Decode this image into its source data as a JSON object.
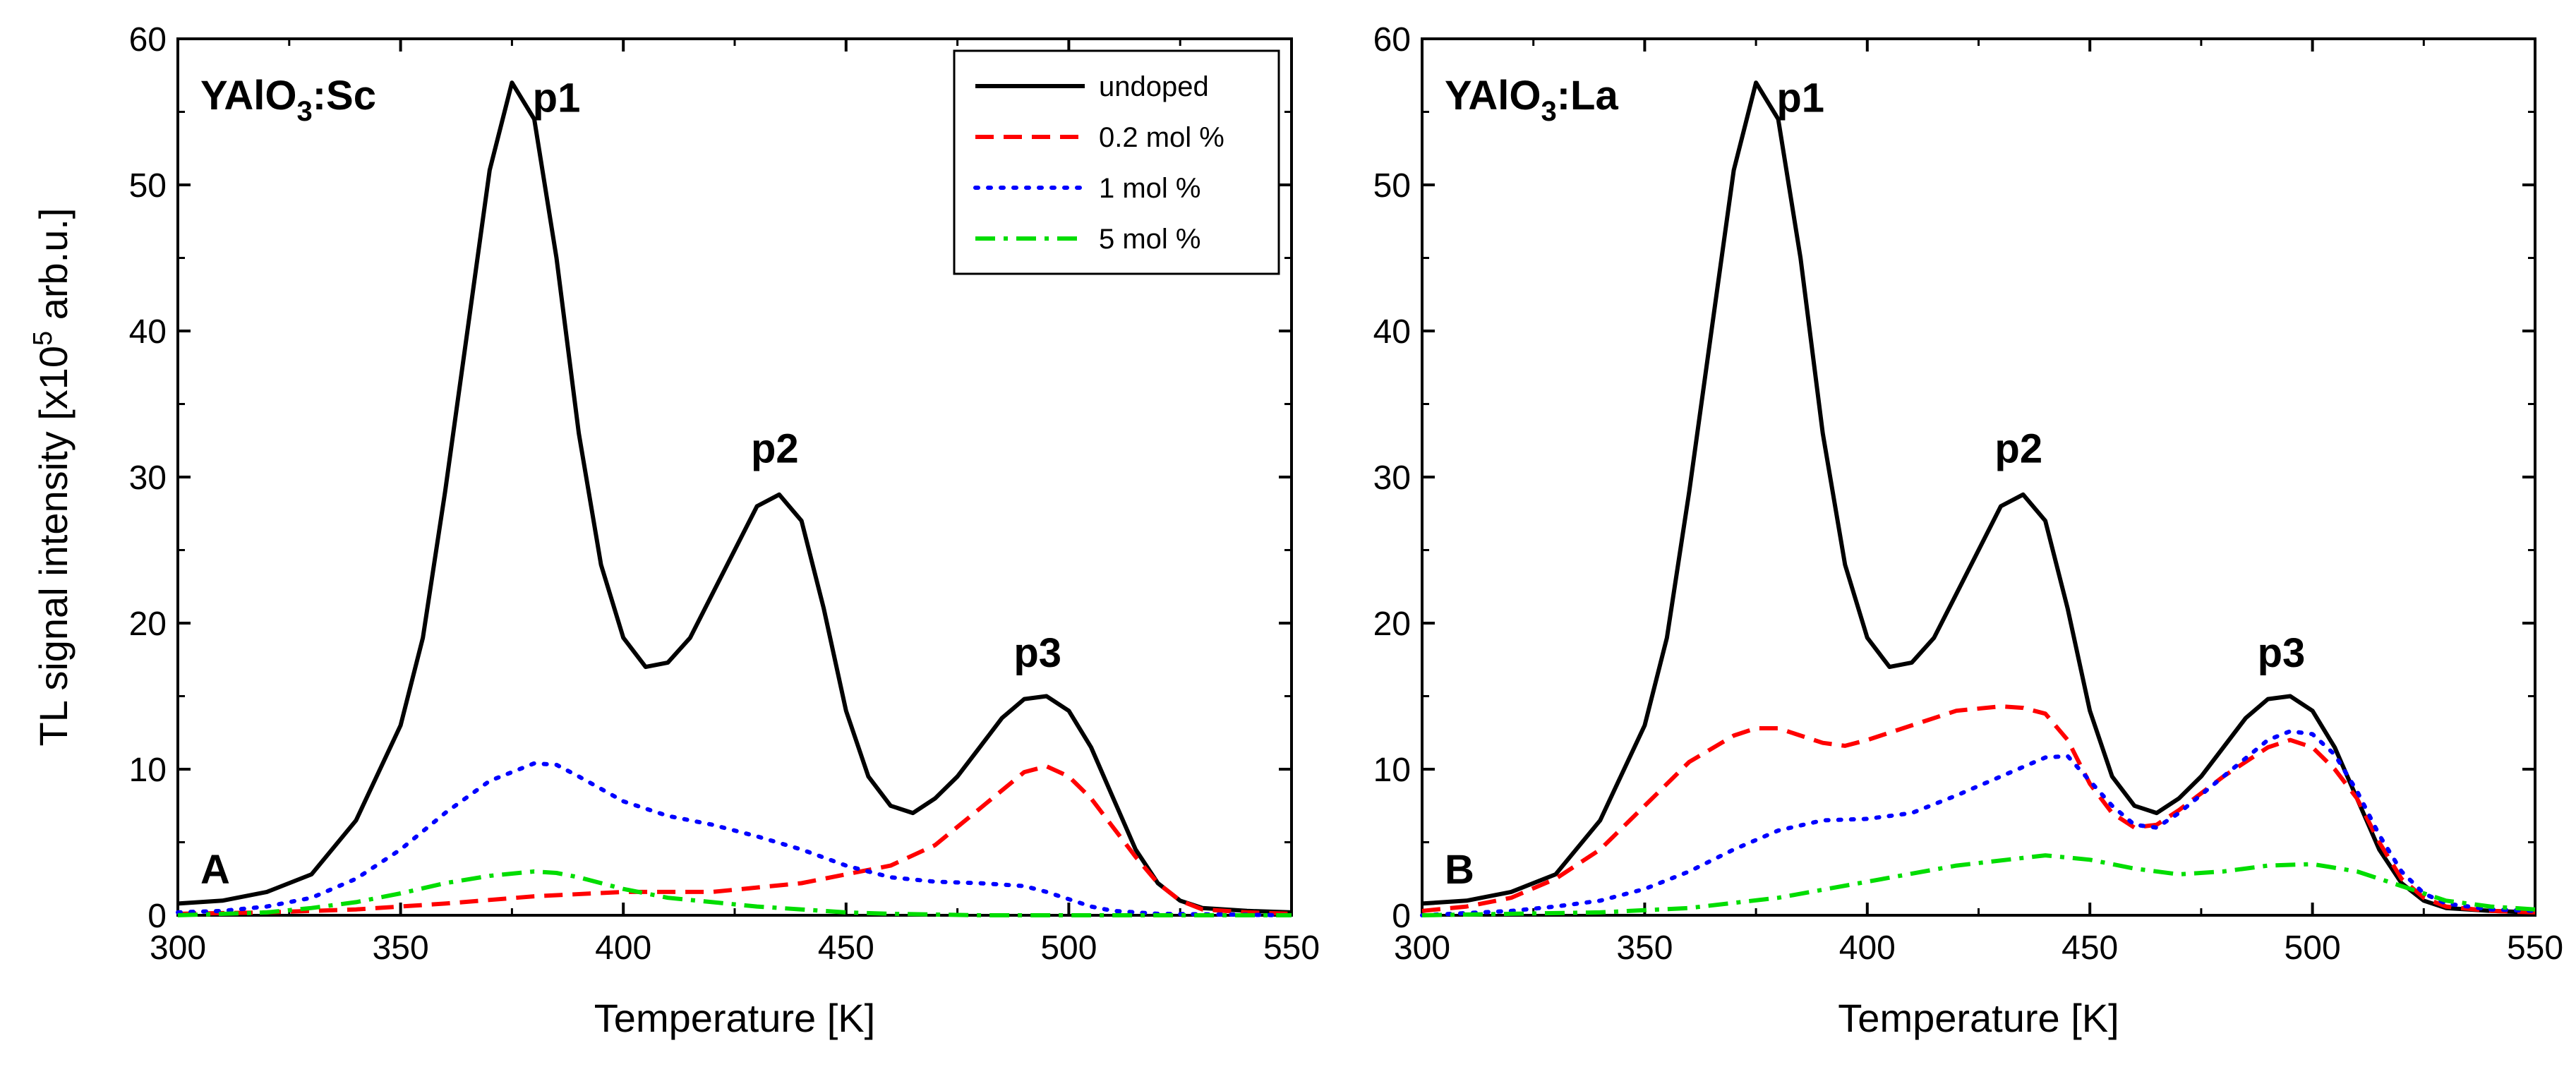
{
  "colors": {
    "undoped": "#000000",
    "mol_0_2": "#ff0000",
    "mol_1": "#0000ff",
    "mol_5": "#00dd00"
  },
  "chart_data": [
    {
      "type": "line",
      "panel_letter": "A",
      "title": {
        "base": "YAlO",
        "subscript": "3",
        "suffix": ":Sc"
      },
      "xlabel": "Temperature [K]",
      "ylabel": {
        "prefix": "TL signal intensity [x10",
        "superscript": "5",
        "suffix": " arb.u.]"
      },
      "xlim": [
        300,
        550
      ],
      "ylim": [
        0,
        60
      ],
      "x_ticks": [
        "300",
        "350",
        "400",
        "450",
        "500",
        "550"
      ],
      "y_ticks": [
        "0",
        "10",
        "20",
        "30",
        "40",
        "50",
        "60"
      ],
      "legend_position": "top-right",
      "peak_labels": [
        {
          "text": "p1",
          "x": 385,
          "y": 55
        },
        {
          "text": "p2",
          "x": 434,
          "y": 31
        },
        {
          "text": "p3",
          "x": 493,
          "y": 17
        }
      ],
      "series": [
        {
          "name": "undoped",
          "style": "solid",
          "points": [
            [
              300,
              0.8
            ],
            [
              310,
              1.0
            ],
            [
              320,
              1.6
            ],
            [
              330,
              2.8
            ],
            [
              340,
              6.5
            ],
            [
              350,
              13
            ],
            [
              355,
              19
            ],
            [
              360,
              29
            ],
            [
              365,
              40
            ],
            [
              370,
              51
            ],
            [
              375,
              57
            ],
            [
              380,
              54.5
            ],
            [
              385,
              45
            ],
            [
              390,
              33
            ],
            [
              395,
              24
            ],
            [
              400,
              19
            ],
            [
              405,
              17
            ],
            [
              410,
              17.3
            ],
            [
              415,
              19
            ],
            [
              420,
              22
            ],
            [
              425,
              25
            ],
            [
              430,
              28
            ],
            [
              435,
              28.8
            ],
            [
              440,
              27
            ],
            [
              445,
              21
            ],
            [
              450,
              14
            ],
            [
              455,
              9.5
            ],
            [
              460,
              7.5
            ],
            [
              465,
              7
            ],
            [
              470,
              8
            ],
            [
              475,
              9.5
            ],
            [
              480,
              11.5
            ],
            [
              485,
              13.5
            ],
            [
              490,
              14.8
            ],
            [
              495,
              15
            ],
            [
              500,
              14
            ],
            [
              505,
              11.5
            ],
            [
              510,
              8
            ],
            [
              515,
              4.5
            ],
            [
              520,
              2.2
            ],
            [
              525,
              1
            ],
            [
              530,
              0.5
            ],
            [
              540,
              0.3
            ],
            [
              550,
              0.2
            ]
          ]
        },
        {
          "name": "0.2 mol %",
          "style": "dashed",
          "points": [
            [
              300,
              0.1
            ],
            [
              320,
              0.2
            ],
            [
              340,
              0.4
            ],
            [
              360,
              0.8
            ],
            [
              380,
              1.3
            ],
            [
              400,
              1.6
            ],
            [
              420,
              1.6
            ],
            [
              440,
              2.2
            ],
            [
              450,
              2.8
            ],
            [
              460,
              3.4
            ],
            [
              470,
              4.8
            ],
            [
              480,
              7.3
            ],
            [
              490,
              9.8
            ],
            [
              495,
              10.2
            ],
            [
              500,
              9.5
            ],
            [
              505,
              8
            ],
            [
              510,
              6
            ],
            [
              515,
              4
            ],
            [
              520,
              2.2
            ],
            [
              525,
              1
            ],
            [
              530,
              0.4
            ],
            [
              540,
              0.2
            ],
            [
              550,
              0.1
            ]
          ]
        },
        {
          "name": "1 mol %",
          "style": "dotted",
          "points": [
            [
              300,
              0.2
            ],
            [
              310,
              0.3
            ],
            [
              320,
              0.6
            ],
            [
              330,
              1.2
            ],
            [
              340,
              2.5
            ],
            [
              350,
              4.5
            ],
            [
              360,
              7
            ],
            [
              370,
              9.2
            ],
            [
              380,
              10.4
            ],
            [
              385,
              10.3
            ],
            [
              390,
              9.5
            ],
            [
              400,
              7.8
            ],
            [
              410,
              6.8
            ],
            [
              420,
              6.2
            ],
            [
              430,
              5.4
            ],
            [
              440,
              4.5
            ],
            [
              450,
              3.4
            ],
            [
              460,
              2.6
            ],
            [
              470,
              2.3
            ],
            [
              480,
              2.2
            ],
            [
              490,
              2
            ],
            [
              495,
              1.6
            ],
            [
              500,
              1.1
            ],
            [
              505,
              0.6
            ],
            [
              510,
              0.3
            ],
            [
              520,
              0.1
            ],
            [
              550,
              0
            ]
          ]
        },
        {
          "name": "5 mol %",
          "style": "dashdot",
          "points": [
            [
              300,
              0
            ],
            [
              320,
              0.2
            ],
            [
              330,
              0.5
            ],
            [
              340,
              0.9
            ],
            [
              350,
              1.5
            ],
            [
              360,
              2.2
            ],
            [
              370,
              2.7
            ],
            [
              380,
              3
            ],
            [
              385,
              2.9
            ],
            [
              390,
              2.6
            ],
            [
              400,
              1.8
            ],
            [
              410,
              1.2
            ],
            [
              420,
              0.9
            ],
            [
              430,
              0.6
            ],
            [
              440,
              0.4
            ],
            [
              450,
              0.2
            ],
            [
              460,
              0.1
            ],
            [
              480,
              0
            ],
            [
              550,
              0
            ]
          ]
        }
      ],
      "legend": [
        "undoped",
        "0.2 mol %",
        "1 mol %",
        "5 mol %"
      ]
    },
    {
      "type": "line",
      "panel_letter": "B",
      "title": {
        "base": "YAlO",
        "subscript": "3",
        "suffix": ":La"
      },
      "xlabel": "Temperature [K]",
      "ylabel": null,
      "xlim": [
        300,
        550
      ],
      "ylim": [
        0,
        60
      ],
      "x_ticks": [
        "300",
        "350",
        "400",
        "450",
        "500",
        "550"
      ],
      "y_ticks": [
        "0",
        "10",
        "20",
        "30",
        "40",
        "50",
        "60"
      ],
      "peak_labels": [
        {
          "text": "p1",
          "x": 385,
          "y": 55
        },
        {
          "text": "p2",
          "x": 434,
          "y": 31
        },
        {
          "text": "p3",
          "x": 493,
          "y": 17
        }
      ],
      "series": [
        {
          "name": "undoped",
          "style": "solid",
          "points": [
            [
              300,
              0.8
            ],
            [
              310,
              1.0
            ],
            [
              320,
              1.6
            ],
            [
              330,
              2.8
            ],
            [
              340,
              6.5
            ],
            [
              350,
              13
            ],
            [
              355,
              19
            ],
            [
              360,
              29
            ],
            [
              365,
              40
            ],
            [
              370,
              51
            ],
            [
              375,
              57
            ],
            [
              380,
              54.5
            ],
            [
              385,
              45
            ],
            [
              390,
              33
            ],
            [
              395,
              24
            ],
            [
              400,
              19
            ],
            [
              405,
              17
            ],
            [
              410,
              17.3
            ],
            [
              415,
              19
            ],
            [
              420,
              22
            ],
            [
              425,
              25
            ],
            [
              430,
              28
            ],
            [
              435,
              28.8
            ],
            [
              440,
              27
            ],
            [
              445,
              21
            ],
            [
              450,
              14
            ],
            [
              455,
              9.5
            ],
            [
              460,
              7.5
            ],
            [
              465,
              7
            ],
            [
              470,
              8
            ],
            [
              475,
              9.5
            ],
            [
              480,
              11.5
            ],
            [
              485,
              13.5
            ],
            [
              490,
              14.8
            ],
            [
              495,
              15
            ],
            [
              500,
              14
            ],
            [
              505,
              11.5
            ],
            [
              510,
              8
            ],
            [
              515,
              4.5
            ],
            [
              520,
              2.2
            ],
            [
              525,
              1
            ],
            [
              530,
              0.5
            ],
            [
              540,
              0.3
            ],
            [
              550,
              0.2
            ]
          ]
        },
        {
          "name": "0.2 mol %",
          "style": "dashed",
          "points": [
            [
              300,
              0.3
            ],
            [
              310,
              0.6
            ],
            [
              320,
              1.2
            ],
            [
              330,
              2.5
            ],
            [
              340,
              4.5
            ],
            [
              350,
              7.5
            ],
            [
              360,
              10.5
            ],
            [
              370,
              12.3
            ],
            [
              375,
              12.8
            ],
            [
              380,
              12.8
            ],
            [
              390,
              11.8
            ],
            [
              395,
              11.6
            ],
            [
              400,
              12
            ],
            [
              410,
              13
            ],
            [
              420,
              14
            ],
            [
              430,
              14.3
            ],
            [
              435,
              14.2
            ],
            [
              440,
              13.8
            ],
            [
              445,
              12
            ],
            [
              450,
              9
            ],
            [
              455,
              7
            ],
            [
              460,
              6
            ],
            [
              465,
              6.2
            ],
            [
              470,
              7.2
            ],
            [
              480,
              9.5
            ],
            [
              490,
              11.5
            ],
            [
              495,
              12
            ],
            [
              500,
              11.5
            ],
            [
              505,
              10
            ],
            [
              510,
              8
            ],
            [
              515,
              5
            ],
            [
              520,
              2.5
            ],
            [
              525,
              1.2
            ],
            [
              530,
              0.6
            ],
            [
              540,
              0.3
            ],
            [
              550,
              0.2
            ]
          ]
        },
        {
          "name": "1 mol %",
          "style": "dotted",
          "points": [
            [
              300,
              0
            ],
            [
              320,
              0.3
            ],
            [
              330,
              0.6
            ],
            [
              340,
              1
            ],
            [
              350,
              1.8
            ],
            [
              360,
              3
            ],
            [
              370,
              4.5
            ],
            [
              380,
              5.8
            ],
            [
              390,
              6.5
            ],
            [
              400,
              6.6
            ],
            [
              410,
              7
            ],
            [
              420,
              8.2
            ],
            [
              430,
              9.5
            ],
            [
              440,
              10.8
            ],
            [
              445,
              10.9
            ],
            [
              450,
              9.2
            ],
            [
              455,
              7.5
            ],
            [
              460,
              6.2
            ],
            [
              465,
              6
            ],
            [
              470,
              7
            ],
            [
              480,
              9.5
            ],
            [
              490,
              12
            ],
            [
              495,
              12.6
            ],
            [
              500,
              12.4
            ],
            [
              505,
              11
            ],
            [
              510,
              8.5
            ],
            [
              515,
              5.5
            ],
            [
              520,
              3
            ],
            [
              525,
              1.5
            ],
            [
              530,
              0.8
            ],
            [
              540,
              0.4
            ],
            [
              550,
              0.3
            ]
          ]
        },
        {
          "name": "5 mol %",
          "style": "dashdot",
          "points": [
            [
              300,
              0
            ],
            [
              320,
              0.1
            ],
            [
              340,
              0.2
            ],
            [
              360,
              0.5
            ],
            [
              380,
              1.2
            ],
            [
              400,
              2.3
            ],
            [
              420,
              3.4
            ],
            [
              440,
              4.1
            ],
            [
              450,
              3.8
            ],
            [
              460,
              3.2
            ],
            [
              470,
              2.8
            ],
            [
              480,
              3
            ],
            [
              490,
              3.4
            ],
            [
              500,
              3.5
            ],
            [
              510,
              3
            ],
            [
              520,
              2
            ],
            [
              530,
              1
            ],
            [
              540,
              0.6
            ],
            [
              550,
              0.4
            ]
          ]
        }
      ]
    }
  ]
}
